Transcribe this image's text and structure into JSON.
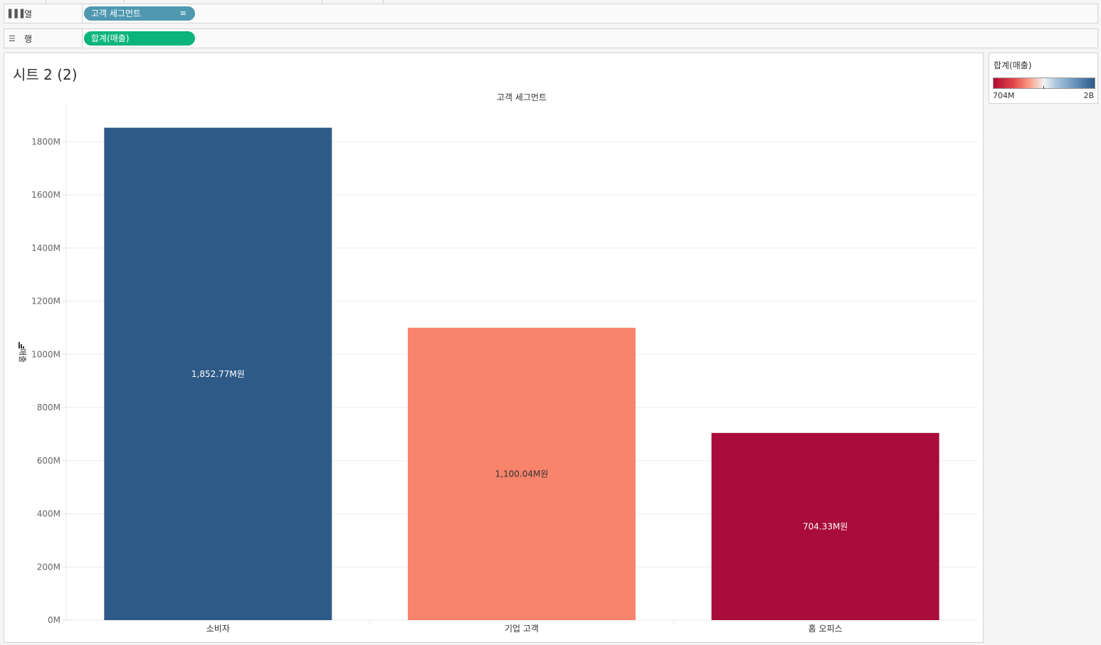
{
  "columns_shelf": {
    "label": "열",
    "pill": "고객 세그먼트"
  },
  "rows_shelf": {
    "label": "행",
    "pill": "합계(매출)"
  },
  "sheet": {
    "title": "시트 2 (2)"
  },
  "legend": {
    "title": "합계(매출)",
    "min_label": "704M",
    "max_label": "2B"
  },
  "chart_data": {
    "type": "bar",
    "title": "",
    "header": "고객 세그먼트",
    "xlabel": "",
    "ylabel": "매출",
    "categories": [
      "소비자",
      "기업 고객",
      "홈 오피스"
    ],
    "values": [
      1852.77,
      1100.04,
      704.33
    ],
    "value_labels": [
      "1,852.77M원",
      "1,100.04M원",
      "704.33M원"
    ],
    "colors": [
      "#2e5a87",
      "#f7846b",
      "#a90c38"
    ],
    "label_colors": [
      "#ffffff",
      "#333333",
      "#ffffff"
    ],
    "yticks": [
      0,
      200,
      400,
      600,
      800,
      1000,
      1200,
      1400,
      1600,
      1800
    ],
    "ytick_labels": [
      "0M",
      "200M",
      "400M",
      "600M",
      "800M",
      "1000M",
      "1200M",
      "1400M",
      "1600M",
      "1800M"
    ],
    "ylim": [
      0,
      1940
    ],
    "grid": true,
    "legend": "right"
  }
}
